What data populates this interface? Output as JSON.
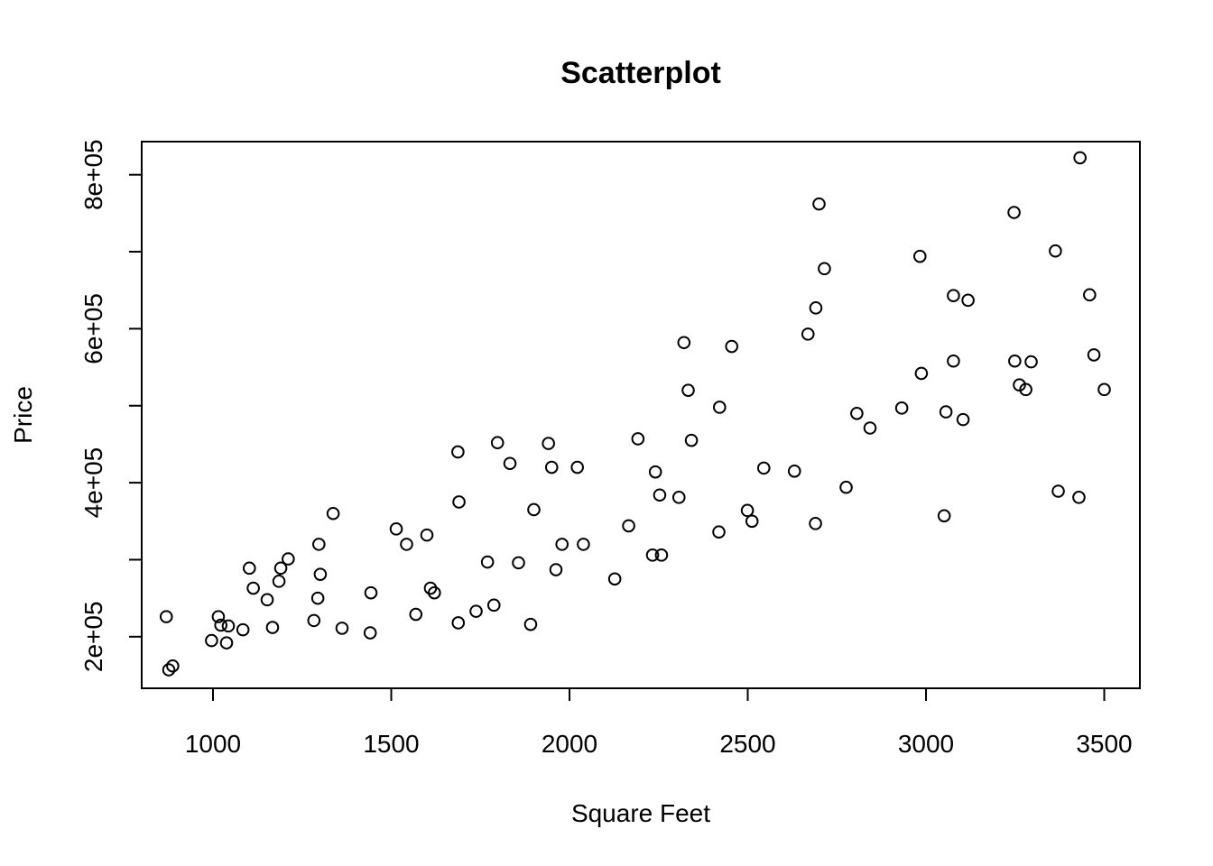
{
  "chart_data": {
    "type": "scatter",
    "title": "Scatterplot",
    "xlabel": "Square Feet",
    "ylabel": "Price",
    "xlim": [
      800,
      3600
    ],
    "ylim": [
      133000,
      843000
    ],
    "x_ticks": [
      1000,
      1500,
      2000,
      2500,
      3000,
      3500
    ],
    "x_tick_labels": [
      "1000",
      "1500",
      "2000",
      "2500",
      "3000",
      "3500"
    ],
    "y_ticks": [
      200000,
      300000,
      400000,
      500000,
      600000,
      700000,
      800000
    ],
    "y_tick_labels": [
      "2e+05",
      "",
      "4e+05",
      "",
      "6e+05",
      "",
      "8e+05"
    ],
    "grid": false,
    "marker": "open-circle",
    "marker_color": "#000000",
    "points": [
      [
        869,
        226000
      ],
      [
        876,
        157000
      ],
      [
        887,
        162000
      ],
      [
        996,
        195000
      ],
      [
        1015,
        226000
      ],
      [
        1022,
        215000
      ],
      [
        1038,
        192000
      ],
      [
        1043,
        214000
      ],
      [
        1084,
        209000
      ],
      [
        1102,
        289000
      ],
      [
        1113,
        263000
      ],
      [
        1152,
        248000
      ],
      [
        1167,
        212000
      ],
      [
        1185,
        272000
      ],
      [
        1190,
        289000
      ],
      [
        1211,
        301000
      ],
      [
        1283,
        221000
      ],
      [
        1294,
        250000
      ],
      [
        1297,
        320000
      ],
      [
        1301,
        281000
      ],
      [
        1337,
        360000
      ],
      [
        1362,
        211000
      ],
      [
        1441,
        205000
      ],
      [
        1443,
        257000
      ],
      [
        1514,
        340000
      ],
      [
        1543,
        320000
      ],
      [
        1569,
        229000
      ],
      [
        1600,
        332000
      ],
      [
        1610,
        263000
      ],
      [
        1621,
        257000
      ],
      [
        1687,
        440000
      ],
      [
        1688,
        218000
      ],
      [
        1690,
        375000
      ],
      [
        1738,
        233000
      ],
      [
        1770,
        297000
      ],
      [
        1788,
        241000
      ],
      [
        1798,
        452000
      ],
      [
        1833,
        425000
      ],
      [
        1857,
        296000
      ],
      [
        1891,
        216000
      ],
      [
        1900,
        365000
      ],
      [
        1941,
        451000
      ],
      [
        1950,
        420000
      ],
      [
        1962,
        287000
      ],
      [
        1979,
        320000
      ],
      [
        2022,
        420000
      ],
      [
        2039,
        320000
      ],
      [
        2127,
        275000
      ],
      [
        2166,
        344000
      ],
      [
        2192,
        457000
      ],
      [
        2233,
        306000
      ],
      [
        2241,
        414000
      ],
      [
        2253,
        384000
      ],
      [
        2258,
        306000
      ],
      [
        2307,
        381000
      ],
      [
        2321,
        582000
      ],
      [
        2333,
        520000
      ],
      [
        2342,
        455000
      ],
      [
        2419,
        336000
      ],
      [
        2421,
        498000
      ],
      [
        2455,
        577000
      ],
      [
        2499,
        364000
      ],
      [
        2512,
        350000
      ],
      [
        2545,
        419000
      ],
      [
        2631,
        415000
      ],
      [
        2669,
        593000
      ],
      [
        2690,
        347000
      ],
      [
        2691,
        627000
      ],
      [
        2700,
        762000
      ],
      [
        2715,
        678000
      ],
      [
        2776,
        394000
      ],
      [
        2806,
        490000
      ],
      [
        2843,
        471000
      ],
      [
        2932,
        497000
      ],
      [
        2983,
        694000
      ],
      [
        2987,
        542000
      ],
      [
        3051,
        357000
      ],
      [
        3056,
        492000
      ],
      [
        3077,
        643000
      ],
      [
        3077,
        558000
      ],
      [
        3104,
        482000
      ],
      [
        3118,
        637000
      ],
      [
        3247,
        751000
      ],
      [
        3249,
        558000
      ],
      [
        3262,
        527000
      ],
      [
        3280,
        521000
      ],
      [
        3295,
        557000
      ],
      [
        3363,
        701000
      ],
      [
        3371,
        389000
      ],
      [
        3429,
        381000
      ],
      [
        3432,
        822000
      ],
      [
        3459,
        644000
      ],
      [
        3471,
        566000
      ],
      [
        3500,
        521000
      ]
    ]
  }
}
